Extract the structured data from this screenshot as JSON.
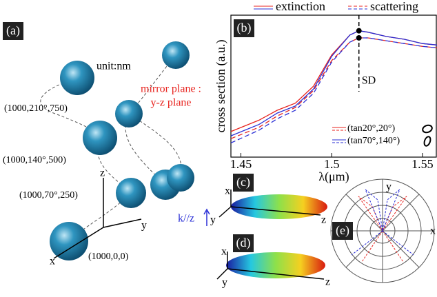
{
  "chart_data": {
    "type": "line",
    "panel": "(b)",
    "xlabel": "λ(μm)",
    "ylabel": "cross section (a.u.)",
    "x": [
      1.4445,
      1.46,
      1.47,
      1.48,
      1.49,
      1.5,
      1.51,
      1.515,
      1.52,
      1.53,
      1.54,
      1.55,
      1.558
    ],
    "xlim": [
      1.4445,
      1.558
    ],
    "xticks": [
      1.45,
      1.5,
      1.55
    ],
    "ylim": [
      0,
      1
    ],
    "series": [
      {
        "name": "extinction",
        "config": "(tan20°,20°)",
        "color": "#e8231e",
        "dashed": false,
        "values": [
          0.18,
          0.26,
          0.33,
          0.38,
          0.5,
          0.72,
          0.86,
          0.89,
          0.88,
          0.85,
          0.83,
          0.8,
          0.79
        ]
      },
      {
        "name": "scattering",
        "config": "(tan20°,20°)",
        "color": "#e8231e",
        "dashed": true,
        "values": [
          0.13,
          0.21,
          0.29,
          0.35,
          0.47,
          0.68,
          0.81,
          0.84,
          0.84,
          0.82,
          0.8,
          0.78,
          0.77
        ]
      },
      {
        "name": "extinction",
        "config": "(tan70°,140°)",
        "color": "#2a2fd6",
        "dashed": false,
        "values": [
          0.15,
          0.23,
          0.31,
          0.36,
          0.48,
          0.71,
          0.86,
          0.89,
          0.88,
          0.85,
          0.83,
          0.8,
          0.79
        ]
      },
      {
        "name": "scattering",
        "config": "(tan70°,140°)",
        "color": "#2a2fd6",
        "dashed": true,
        "values": [
          0.1,
          0.19,
          0.27,
          0.33,
          0.45,
          0.67,
          0.81,
          0.84,
          0.84,
          0.82,
          0.8,
          0.78,
          0.77
        ]
      }
    ],
    "annotation": {
      "text": "SD",
      "x": 1.515
    }
  },
  "labels": {
    "panel_a": "(a)",
    "panel_c": "(c)",
    "panel_d": "(d)",
    "panel_e": "(e)",
    "unit": "unit:nm",
    "mirror1": "mirror plane :",
    "mirror2": "y-z plane",
    "p1": "(1000,210°,750)",
    "p2": "(1000,140°,500)",
    "p3": "(1000,70°,250)",
    "p4": "(1000,0,0)",
    "k": "k//z",
    "x": "x",
    "y": "y",
    "z": "z"
  }
}
